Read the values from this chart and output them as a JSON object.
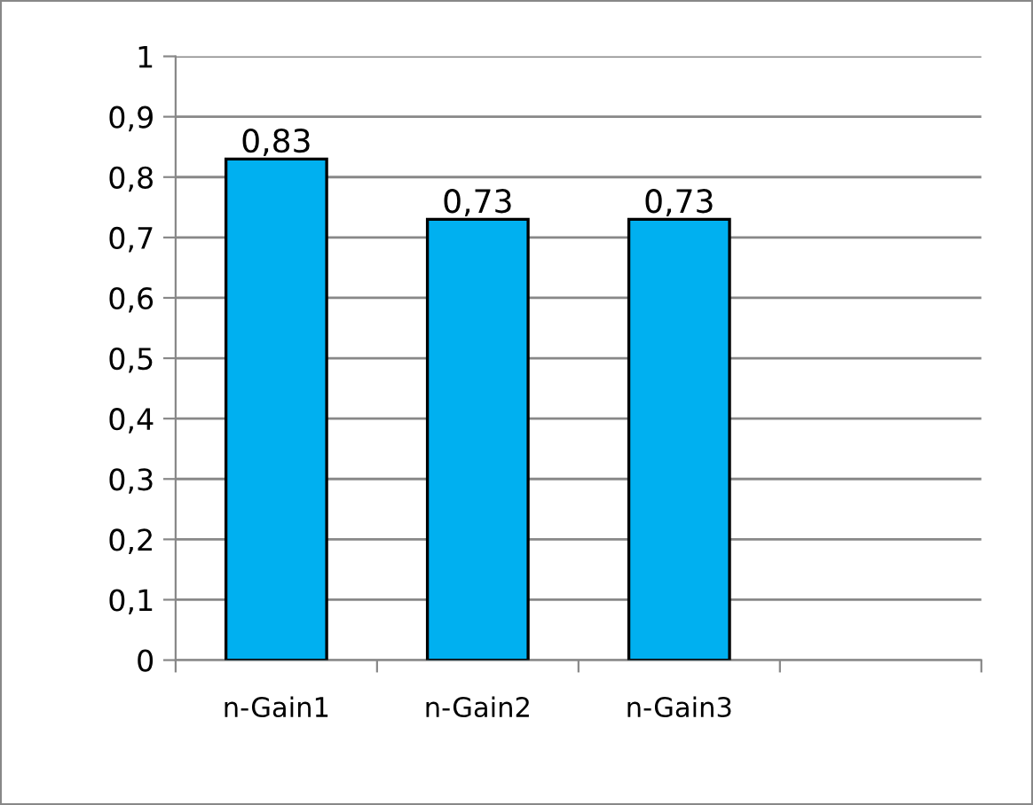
{
  "chart_data": {
    "type": "bar",
    "categories": [
      "n-Gain1",
      "n-Gain2",
      "n-Gain3",
      null
    ],
    "values": [
      0.83,
      0.73,
      0.73,
      null
    ],
    "value_labels": [
      "0,83",
      "0,73",
      "0,73",
      null
    ],
    "color": "#00b0f0",
    "ylim": [
      0,
      1
    ],
    "yticks": [
      {
        "value": 0,
        "label": "0"
      },
      {
        "value": 0.1,
        "label": "0,1"
      },
      {
        "value": 0.2,
        "label": "0,2"
      },
      {
        "value": 0.3,
        "label": "0,3"
      },
      {
        "value": 0.4,
        "label": "0,4"
      },
      {
        "value": 0.5,
        "label": "0,5"
      },
      {
        "value": 0.6,
        "label": "0,6"
      },
      {
        "value": 0.7,
        "label": "0,7"
      },
      {
        "value": 0.8,
        "label": "0,8"
      },
      {
        "value": 0.9,
        "label": "0,9"
      },
      {
        "value": 1,
        "label": "1"
      }
    ],
    "grid": "y",
    "legend": false
  }
}
